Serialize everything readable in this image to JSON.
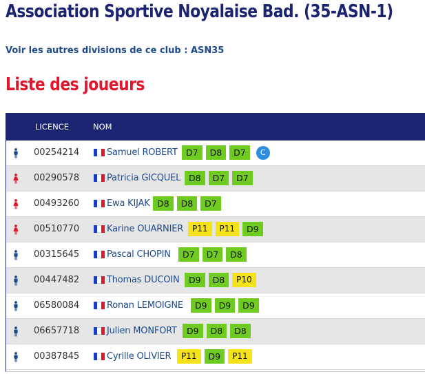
{
  "club": {
    "title": "Association Sportive Noyalaise Bad. (35-ASN-1)",
    "other_divisions_label": "Voir les autres divisions de ce club : ",
    "other_divisions_link": "ASN35"
  },
  "section_title": "Liste des joueurs",
  "table": {
    "headers": {
      "licence": "LICENCE",
      "nom": "NOM"
    },
    "rows": [
      {
        "gender": "male",
        "licence": "00254214",
        "name": "Samuel ROBERT",
        "rankings": [
          "D7",
          "D8",
          "D7"
        ],
        "captain": "C"
      },
      {
        "gender": "female",
        "licence": "00290578",
        "name": "Patricia GICQUEL",
        "rankings": [
          "D8",
          "D7",
          "D7"
        ]
      },
      {
        "gender": "female",
        "licence": "00493260",
        "name": "Ewa KIJAK",
        "rankings": [
          "D8",
          "D8",
          "D7"
        ]
      },
      {
        "gender": "female",
        "licence": "00510770",
        "name": "Karine OUARNIER",
        "rankings": [
          "P11",
          "P11",
          "D9"
        ]
      },
      {
        "gender": "male",
        "licence": "00315645",
        "name": "Pascal CHOPIN",
        "rankings": [
          "D7",
          "D7",
          "D8"
        ]
      },
      {
        "gender": "male",
        "licence": "00447482",
        "name": "Thomas DUCOIN",
        "rankings": [
          "D9",
          "D8",
          "P10"
        ]
      },
      {
        "gender": "male",
        "licence": "06580084",
        "name": "Ronan LEMOIGNE",
        "rankings": [
          "D9",
          "D9",
          "D9"
        ]
      },
      {
        "gender": "male",
        "licence": "06657718",
        "name": "Julien MONFORT",
        "rankings": [
          "D9",
          "D8",
          "D8"
        ]
      },
      {
        "gender": "male",
        "licence": "00387845",
        "name": "Cyrille OLIVIER",
        "rankings": [
          "P11",
          "D9",
          "P11"
        ]
      }
    ]
  },
  "colors": {
    "male_icon": "#1e4a8a",
    "female_icon": "#e0182d",
    "rank_D": "#6fcb1f",
    "rank_P": "#f4e31a",
    "header_bg": "#1a2470"
  }
}
